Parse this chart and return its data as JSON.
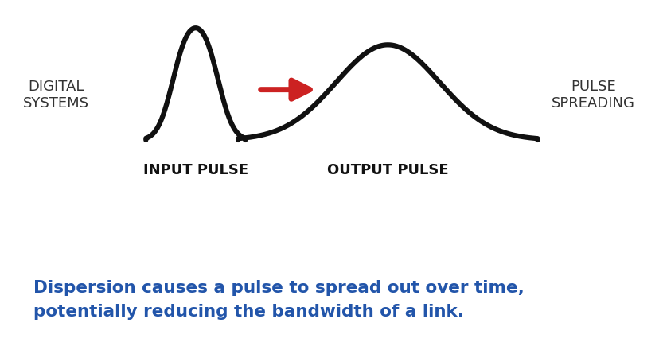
{
  "background_color": "#ffffff",
  "pulse_linewidth": 4.5,
  "pulse_color": "#111111",
  "arrow_color": "#cc2222",
  "label_digital_systems": "DIGITAL\nSYSTEMS",
  "label_pulse_spreading": "PULSE\nSPREADING",
  "label_input_pulse": "INPUT PULSE",
  "label_output_pulse": "OUTPUT PULSE",
  "caption_line1": "Dispersion causes a pulse to spread out over time,",
  "caption_line2": "potentially reducing the bandwidth of a link.",
  "caption_color": "#2255aa",
  "caption_fontsize": 15.5,
  "label_fontsize": 13,
  "side_label_fontsize": 13
}
